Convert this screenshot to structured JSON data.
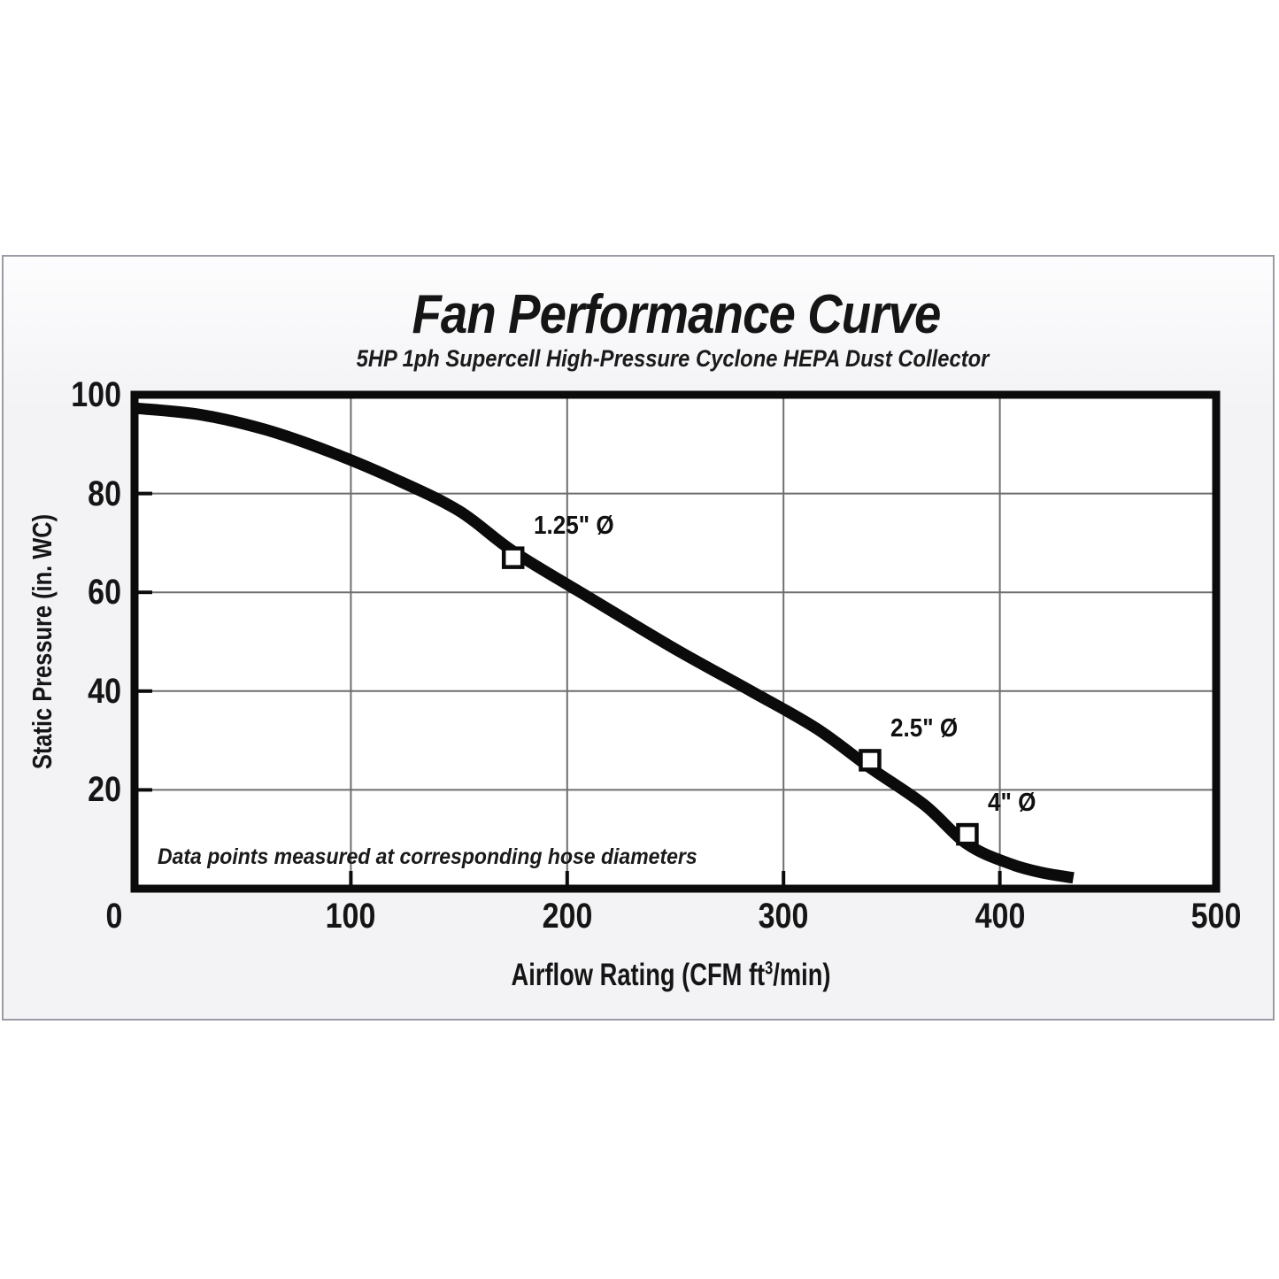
{
  "page": {
    "background": "#ffffff"
  },
  "panel": {
    "border_color": "#9b9ba6",
    "background": "#f3f3f6"
  },
  "chart_data": {
    "type": "line",
    "title": "Fan Performance Curve",
    "subtitle": "5HP 1ph Supercell High-Pressure Cyclone HEPA Dust Collector",
    "ylabel": "Static Pressure (in. WC)",
    "xlabel_parts": [
      "Airflow Rating (CFM ft",
      "3",
      "/min)"
    ],
    "note": "Data points measured at corresponding hose diameters",
    "xlim": [
      0,
      500
    ],
    "ylim": [
      0,
      100
    ],
    "xticks": [
      0,
      100,
      200,
      300,
      400,
      500
    ],
    "yticks": [
      20,
      40,
      60,
      80,
      100
    ],
    "grid_x": [
      100,
      200,
      300,
      400
    ],
    "grid_y": [
      20,
      40,
      60,
      80
    ],
    "grid": true,
    "legend_position": "none",
    "curve": [
      [
        0,
        97.3
      ],
      [
        30,
        96
      ],
      [
        60,
        93
      ],
      [
        90,
        88.5
      ],
      [
        120,
        83
      ],
      [
        150,
        76.5
      ],
      [
        175,
        68.3
      ],
      [
        210,
        59
      ],
      [
        250,
        48.5
      ],
      [
        285,
        40
      ],
      [
        315,
        32.5
      ],
      [
        340,
        24.5
      ],
      [
        365,
        17
      ],
      [
        385,
        9
      ],
      [
        405,
        5
      ],
      [
        420,
        3.2
      ],
      [
        434,
        2.2
      ]
    ],
    "points": [
      {
        "x": 175,
        "y": 67,
        "label": "1.25\" Ø"
      },
      {
        "x": 340,
        "y": 26,
        "label": "2.5\" Ø"
      },
      {
        "x": 385,
        "y": 11,
        "label": "4\" Ø"
      }
    ],
    "colors": {
      "curve": "#0b0b0b",
      "axis": "#0b0b0b",
      "grid": "#6e6e6e",
      "marker_fill": "#ffffff",
      "plot_background": "#ffffff",
      "text": "#151515"
    }
  }
}
